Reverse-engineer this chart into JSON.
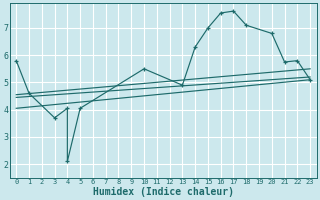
{
  "xlabel": "Humidex (Indice chaleur)",
  "bg_color": "#cce8ed",
  "grid_color": "#ffffff",
  "line_color": "#1e6b6b",
  "xlim": [
    -0.5,
    23.5
  ],
  "ylim": [
    1.5,
    7.9
  ],
  "xticks": [
    0,
    1,
    2,
    3,
    4,
    5,
    6,
    7,
    8,
    9,
    10,
    11,
    12,
    13,
    14,
    15,
    16,
    17,
    18,
    19,
    20,
    21,
    22,
    23
  ],
  "yticks": [
    2,
    3,
    4,
    5,
    6,
    7
  ],
  "curve1_x": [
    0,
    1,
    3,
    4,
    4,
    5,
    10,
    13,
    14,
    15,
    16,
    17,
    18,
    20,
    21,
    22,
    23
  ],
  "curve1_y": [
    5.8,
    4.6,
    3.7,
    4.05,
    2.1,
    4.05,
    5.5,
    4.9,
    6.3,
    7.0,
    7.55,
    7.62,
    7.1,
    6.8,
    5.75,
    5.8,
    5.1
  ],
  "line1_x": [
    0,
    23
  ],
  "line1_y": [
    4.55,
    5.5
  ],
  "line2_x": [
    0,
    23
  ],
  "line2_y": [
    4.45,
    5.2
  ],
  "line3_x": [
    0,
    23
  ],
  "line3_y": [
    4.05,
    5.1
  ],
  "xlabel_fontsize": 7,
  "tick_fontsize_x": 5,
  "tick_fontsize_y": 6
}
